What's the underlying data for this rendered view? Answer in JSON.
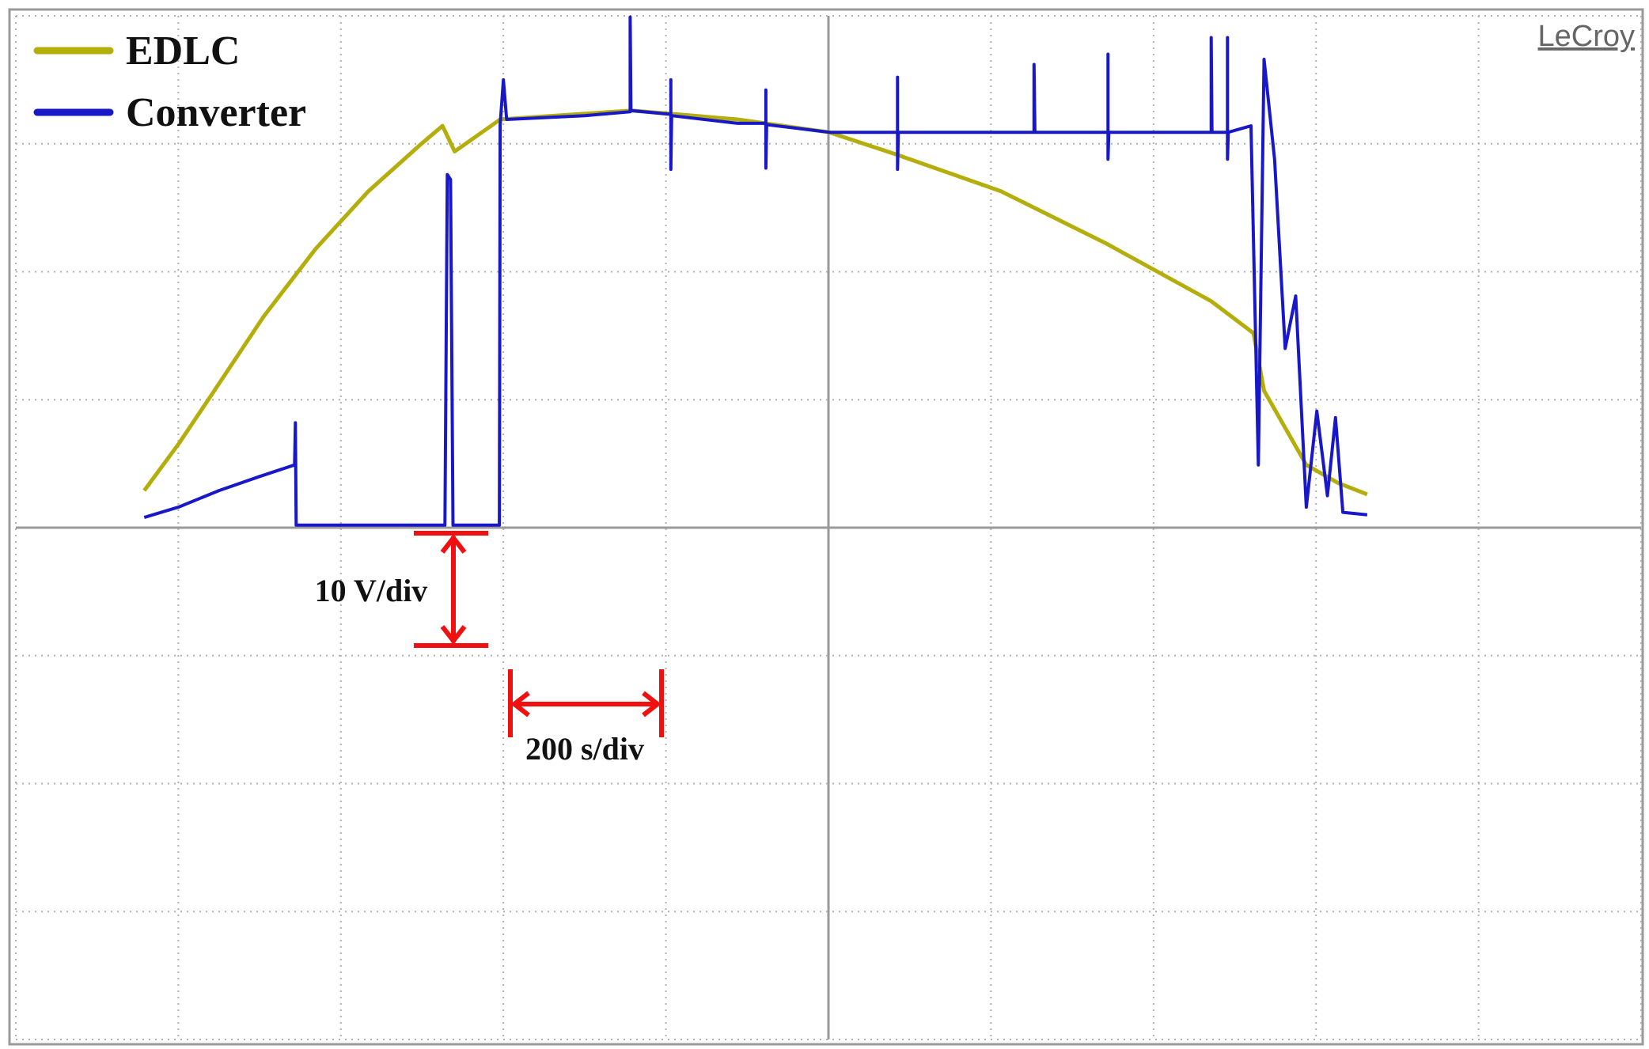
{
  "chart_data": {
    "type": "line",
    "brand": "LeCroy",
    "annotations": [
      "10 V/div",
      "200 s/div"
    ],
    "xlim": [
      0,
      2000
    ],
    "ylim": [
      -40,
      40
    ],
    "xticks": [
      0,
      200,
      400,
      600,
      800,
      1000,
      1200,
      1400,
      1600,
      1800,
      2000
    ],
    "yticks": [
      -40,
      -30,
      -20,
      -10,
      0,
      10,
      20,
      30,
      40
    ],
    "grid": true,
    "legend": "top-left",
    "series": [
      {
        "name": "EDLC",
        "color": "#b4ae0c",
        "x": [
          158,
          201,
          240,
          305,
          369,
          434,
          499,
          525,
          540,
          596,
          758,
          888,
          1001,
          1082,
          1212,
          1342,
          1471,
          1523,
          1536,
          1588,
          1627,
          1663
        ],
        "values": [
          2.9,
          6.6,
          10.3,
          16.5,
          21.8,
          26.3,
          30.0,
          31.4,
          29.4,
          31.9,
          32.6,
          31.9,
          30.9,
          29.2,
          26.3,
          22.2,
          17.7,
          15.2,
          10.7,
          4.9,
          3.5,
          2.6
        ]
      },
      {
        "name": "Converter",
        "color": "#1818c8",
        "x": [
          158,
          200,
          250,
          300,
          343,
          344,
          345,
          528,
          531,
          535,
          538,
          595,
          596,
          600,
          604,
          700,
          756,
          756,
          757,
          806,
          806,
          806,
          807,
          888,
          923,
          923,
          923,
          924,
          1001,
          1085,
          1085,
          1085,
          1086,
          1253,
          1253,
          1254,
          1344,
          1344,
          1344,
          1345,
          1471,
          1471,
          1472,
          1491,
          1491,
          1491,
          1492,
          1520,
          1529,
          1536,
          1549,
          1562,
          1575,
          1588,
          1601,
          1614,
          1624,
          1633,
          1663
        ],
        "values": [
          0.8,
          1.6,
          2.9,
          4.0,
          4.9,
          8.2,
          0.2,
          0.2,
          27.6,
          27.2,
          0.2,
          0.2,
          31.5,
          35.0,
          31.9,
          32.2,
          32.5,
          39.9,
          32.6,
          32.3,
          35.0,
          28.0,
          32.2,
          31.6,
          31.6,
          34.2,
          28.1,
          31.5,
          30.9,
          30.9,
          35.2,
          28.0,
          30.9,
          30.9,
          36.2,
          30.9,
          30.9,
          37.0,
          28.8,
          30.9,
          30.9,
          38.3,
          30.9,
          30.9,
          38.3,
          28.8,
          30.9,
          31.4,
          4.9,
          36.6,
          28.8,
          14.0,
          18.1,
          1.6,
          9.1,
          2.5,
          8.6,
          1.2,
          1.0
        ]
      }
    ]
  }
}
